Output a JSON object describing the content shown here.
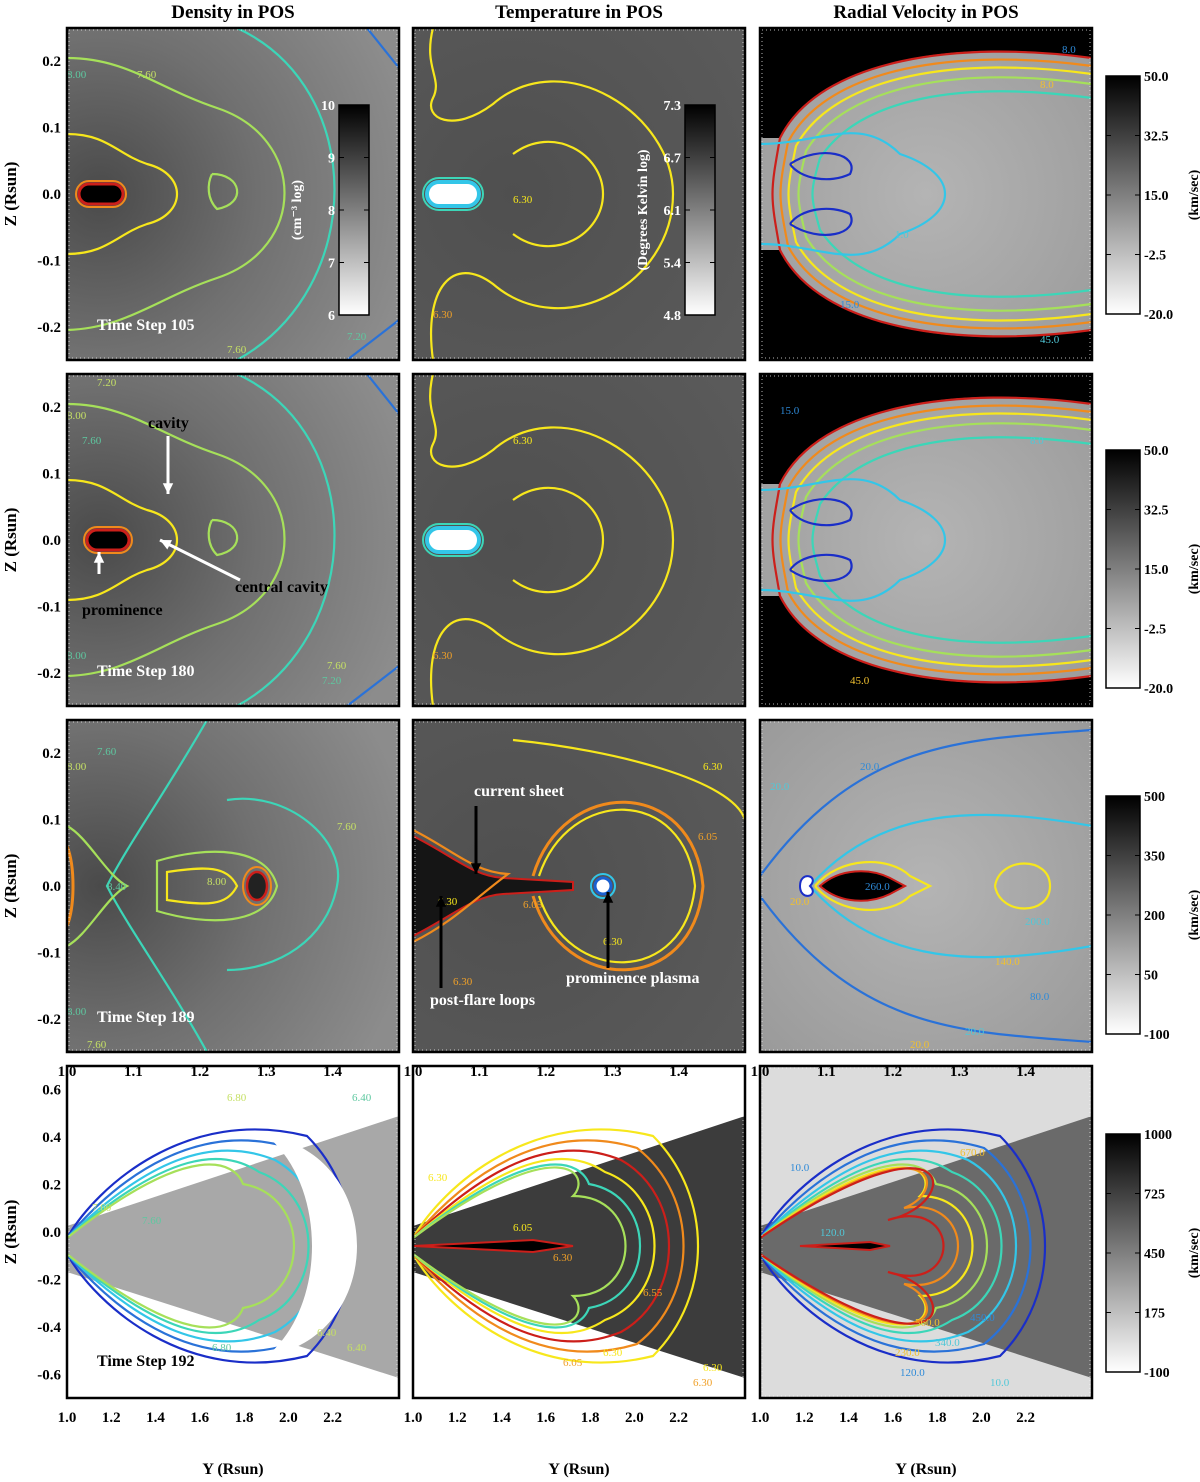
{
  "column_titles": [
    "Density in POS",
    "Temperature in POS",
    "Radial Velocity in POS"
  ],
  "ylabel": "Z (Rsun)",
  "xlabel": "Y (Rsun)",
  "chart_data": [
    {
      "type": "heatmap",
      "title": "Density in POS",
      "rows": [
        {
          "time_step_label": "Time Step 105",
          "xlim": [
            1.0,
            1.5
          ],
          "ylim": [
            -0.25,
            0.25
          ],
          "yticks": [
            "0.2",
            "0.1",
            "0.0",
            "-0.1",
            "-0.2"
          ],
          "contour_labels": [
            "7.60",
            "8.00",
            "7.60",
            "7.20"
          ],
          "colorbar": {
            "ticks": [
              "10",
              "9",
              "8",
              "7",
              "6"
            ],
            "label": "(cm⁻³ log)"
          }
        },
        {
          "time_step_label": "Time Step 180",
          "xlim": [
            1.0,
            1.5
          ],
          "ylim": [
            -0.25,
            0.25
          ],
          "yticks": [
            "0.2",
            "0.1",
            "0.0",
            "-0.1",
            "-0.2"
          ],
          "contour_labels": [
            "8.00",
            "7.60",
            "7.20",
            "8.00",
            "7.60",
            "7.20"
          ],
          "annotations": [
            "cavity",
            "prominence",
            "central cavity"
          ]
        },
        {
          "time_step_label": "Time Step 189",
          "xlim": [
            1.0,
            1.5
          ],
          "ylim": [
            -0.25,
            0.25
          ],
          "yticks": [
            "0.2",
            "0.1",
            "0.0",
            "-0.1",
            "-0.2"
          ],
          "xticks": [
            "1.0",
            "1.1",
            "1.2",
            "1.3",
            "1.4"
          ],
          "contour_labels": [
            "8.00",
            "7.60",
            "7.60",
            "8.40",
            "8.00",
            "8.00",
            "7.60"
          ]
        },
        {
          "time_step_label": "Time Step 192",
          "xlim": [
            1.0,
            2.5
          ],
          "ylim": [
            -0.7,
            0.7
          ],
          "yticks": [
            "0.6",
            "0.4",
            "0.2",
            "0.0",
            "-0.2",
            "-0.4",
            "-0.6"
          ],
          "xticks": [
            "1.0",
            "1.2",
            "1.4",
            "1.6",
            "1.8",
            "2.0",
            "2.2"
          ],
          "contour_labels": [
            "6.80",
            "6.40",
            "7.60",
            "7.60",
            "6.40",
            "6.80",
            "6.40"
          ]
        }
      ]
    },
    {
      "type": "heatmap",
      "title": "Temperature in POS",
      "rows": [
        {
          "contour_labels": [
            "6.30",
            "6.30"
          ],
          "colorbar": {
            "ticks": [
              "7.3",
              "6.7",
              "6.1",
              "5.4",
              "4.8"
            ],
            "label": "(Degrees Kelvin log)"
          }
        },
        {
          "contour_labels": [
            "6.30",
            "6.30"
          ]
        },
        {
          "xticks": [
            "1.0",
            "1.1",
            "1.2",
            "1.3",
            "1.4"
          ],
          "contour_labels": [
            "6.30",
            "6.05",
            "6.30",
            "6.05",
            "6.30",
            "6.30"
          ],
          "annotations": [
            "current sheet",
            "post-flare loops",
            "prominence plasma"
          ]
        },
        {
          "xticks": [
            "1.0",
            "1.2",
            "1.4",
            "1.6",
            "1.8",
            "2.0",
            "2.2"
          ],
          "contour_labels": [
            "6.30",
            "6.30",
            "6.05",
            "6.05",
            "6.30",
            "6.55",
            "6.30",
            "6.30"
          ]
        }
      ]
    },
    {
      "type": "heatmap",
      "title": "Radial Velocity in POS",
      "rows": [
        {
          "contour_labels": [
            "8.0",
            "1.0",
            "8.0",
            "15.0",
            "45.0"
          ],
          "colorbar": {
            "ticks": [
              "50.0",
              "32.5",
              "15.0",
              "-2.5",
              "-20.0"
            ],
            "label": "(km/sec)"
          }
        },
        {
          "contour_labels": [
            "15.0",
            "8.0",
            "45.0"
          ],
          "colorbar": {
            "ticks": [
              "50.0",
              "32.5",
              "15.0",
              "-2.5",
              "-20.0"
            ],
            "label": "(km/sec)"
          }
        },
        {
          "xticks": [
            "1.0",
            "1.1",
            "1.2",
            "1.3",
            "1.4"
          ],
          "contour_labels": [
            "20.0",
            "20.0",
            "20.0",
            "260.0",
            "200.0",
            "140.0",
            "80.0",
            "20.0",
            "20.0"
          ],
          "colorbar": {
            "ticks": [
              "500",
              "350",
              "200",
              "50",
              "-100"
            ],
            "label": "(km/sec)"
          }
        },
        {
          "xticks": [
            "1.0",
            "1.2",
            "1.4",
            "1.6",
            "1.8",
            "2.0",
            "2.2"
          ],
          "contour_labels": [
            "10.0",
            "120.0",
            "670.0",
            "450.0",
            "340.0",
            "230.0",
            "120.0",
            "10.0",
            "560.0"
          ],
          "colorbar": {
            "ticks": [
              "1000",
              "725",
              "450",
              "175",
              "-100"
            ],
            "label": "(km/sec)"
          }
        }
      ]
    }
  ]
}
